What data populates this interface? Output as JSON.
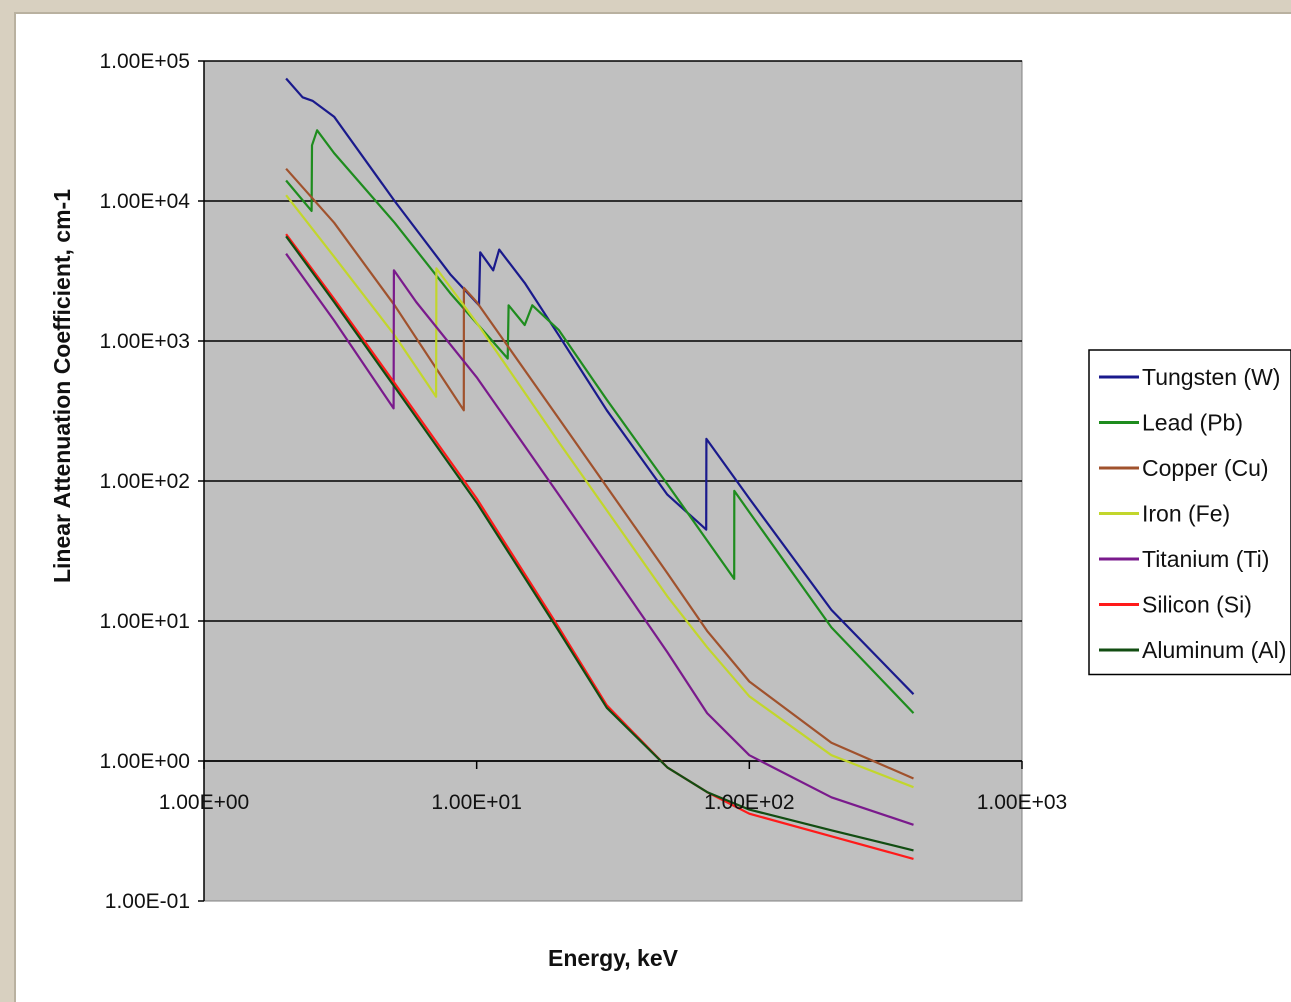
{
  "chart_data": {
    "type": "line",
    "xlabel": "Energy, keV",
    "ylabel": "Linear Attenuation Coefficient, cm-1",
    "xscale": "log",
    "yscale": "log",
    "xlim": [
      1,
      1000
    ],
    "ylim": [
      0.1,
      100000
    ],
    "x_ticks": [
      "1.00E+00",
      "1.00E+01",
      "1.00E+02",
      "1.00E+03"
    ],
    "y_ticks": [
      "1.00E-01",
      "1.00E+00",
      "1.00E+01",
      "1.00E+02",
      "1.00E+03",
      "1.00E+04",
      "1.00E+05"
    ],
    "grid": "horizontal major gridlines",
    "background": "#c0c0c0",
    "legend_position": "right",
    "series": [
      {
        "name": "Tungsten (W)",
        "color": "#1a1a8c",
        "points": [
          [
            2,
            75000
          ],
          [
            2.3,
            55000
          ],
          [
            2.5,
            52000
          ],
          [
            3,
            40000
          ],
          [
            5,
            10000
          ],
          [
            8,
            3000
          ],
          [
            10.2,
            1800
          ],
          [
            10.3,
            4300
          ],
          [
            11.5,
            3200
          ],
          [
            12.1,
            4500
          ],
          [
            15,
            2600
          ],
          [
            20,
            1100
          ],
          [
            30,
            320
          ],
          [
            50,
            80
          ],
          [
            69.5,
            45
          ],
          [
            69.6,
            200
          ],
          [
            100,
            75
          ],
          [
            200,
            12
          ],
          [
            400,
            3
          ]
        ]
      },
      {
        "name": "Lead (Pb)",
        "color": "#1e8c1e",
        "points": [
          [
            2,
            14000
          ],
          [
            2.48,
            8500
          ],
          [
            2.49,
            25000
          ],
          [
            2.6,
            32000
          ],
          [
            3,
            22000
          ],
          [
            5,
            7000
          ],
          [
            8,
            2200
          ],
          [
            13,
            750
          ],
          [
            13.1,
            1800
          ],
          [
            15,
            1300
          ],
          [
            16,
            1800
          ],
          [
            20,
            1200
          ],
          [
            30,
            380
          ],
          [
            50,
            95
          ],
          [
            88,
            20
          ],
          [
            88.1,
            85
          ],
          [
            100,
            60
          ],
          [
            200,
            9
          ],
          [
            400,
            2.2
          ]
        ]
      },
      {
        "name": "Copper (Cu)",
        "color": "#a0522d",
        "points": [
          [
            2,
            17000
          ],
          [
            3,
            7000
          ],
          [
            5,
            1800
          ],
          [
            8.97,
            320
          ],
          [
            8.98,
            2400
          ],
          [
            10,
            1900
          ],
          [
            20,
            280
          ],
          [
            50,
            22
          ],
          [
            70,
            8.5
          ],
          [
            100,
            3.7
          ],
          [
            200,
            1.35
          ],
          [
            400,
            0.75
          ]
        ]
      },
      {
        "name": "Iron (Fe)",
        "color": "#c2d62c",
        "points": [
          [
            2,
            11000
          ],
          [
            3,
            4000
          ],
          [
            5,
            1100
          ],
          [
            7.1,
            400
          ],
          [
            7.12,
            3300
          ],
          [
            10,
            1350
          ],
          [
            20,
            190
          ],
          [
            50,
            15
          ],
          [
            70,
            6.5
          ],
          [
            100,
            2.9
          ],
          [
            200,
            1.1
          ],
          [
            400,
            0.65
          ]
        ]
      },
      {
        "name": "Titanium (Ti)",
        "color": "#7a1a8c",
        "points": [
          [
            2,
            4200
          ],
          [
            3,
            1400
          ],
          [
            4.96,
            330
          ],
          [
            4.97,
            3200
          ],
          [
            6,
            1900
          ],
          [
            10,
            550
          ],
          [
            20,
            80
          ],
          [
            50,
            6
          ],
          [
            70,
            2.2
          ],
          [
            100,
            1.1
          ],
          [
            200,
            0.55
          ],
          [
            400,
            0.35
          ]
        ]
      },
      {
        "name": "Silicon (Si)",
        "color": "#ff1a1a",
        "points": [
          [
            2,
            5800
          ],
          [
            3,
            2000
          ],
          [
            5,
            500
          ],
          [
            10,
            75
          ],
          [
            20,
            9
          ],
          [
            30,
            2.5
          ],
          [
            50,
            0.9
          ],
          [
            70,
            0.6
          ],
          [
            100,
            0.42
          ],
          [
            200,
            0.29
          ],
          [
            400,
            0.2
          ]
        ]
      },
      {
        "name": "Aluminum (Al)",
        "color": "#124d12",
        "points": [
          [
            2,
            5600
          ],
          [
            3,
            1900
          ],
          [
            5,
            470
          ],
          [
            10,
            70
          ],
          [
            20,
            8.5
          ],
          [
            30,
            2.4
          ],
          [
            50,
            0.9
          ],
          [
            70,
            0.6
          ],
          [
            100,
            0.45
          ],
          [
            200,
            0.32
          ],
          [
            400,
            0.23
          ]
        ]
      }
    ]
  }
}
